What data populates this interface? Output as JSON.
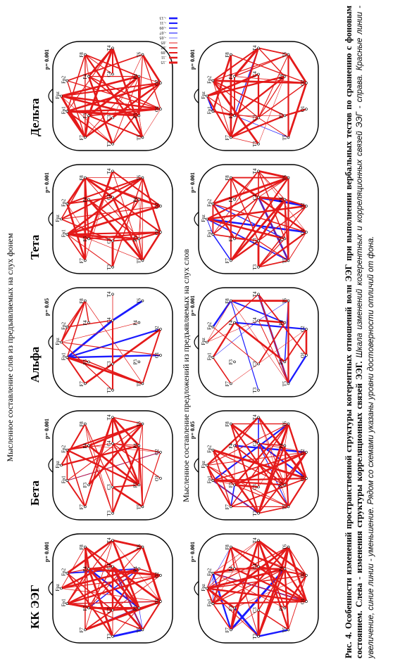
{
  "title_row1": "Мысленное составление слов   из предъявляемых на слух фонем",
  "title_row2": "Мысленное составление предложений из   предъявляемых на слух слов",
  "columns": [
    "КК ЭЭГ",
    "Бета",
    "Альфа",
    "Тета",
    "Дельта"
  ],
  "p_values": [
    [
      "p= 0.001",
      "p= 0.001",
      "p= 0.05",
      "p= 0.001",
      "p= 0.001"
    ],
    [
      "p= 0.001",
      "p= 0.05",
      "p= 0.001",
      "p= 0.001",
      "p= 0.001"
    ]
  ],
  "electrodes": [
    "Fp1",
    "Fpz",
    "Fp2",
    "F7",
    "F3",
    "F4",
    "F8",
    "T3",
    "C3",
    "C4",
    "T4",
    "T5",
    "P3",
    "P4",
    "T6",
    "O1",
    "O2"
  ],
  "legend": [
    ".15",
    ".11",
    ".09",
    ".07",
    ".05",
    "-.05",
    "-.07",
    "-.09",
    "-.11",
    "-.13"
  ],
  "caption": {
    "bold": "Рис. 4. Особенности изменений пространственной структуры когерентных отношений волн ЭЭГ при выполнении вербальных тестов по сравнению с фоновым состоянием. Слева - изменения структуры корреляционных связей ЭЭГ.",
    "italic": "Шкала изменений когерентных и корреляционных связей ЭЭГ - справа. Красные линии - увеличение, синие линии - уменьшение. Рядом со схемами указаны уровни достоверности отличий от фона."
  }
}
